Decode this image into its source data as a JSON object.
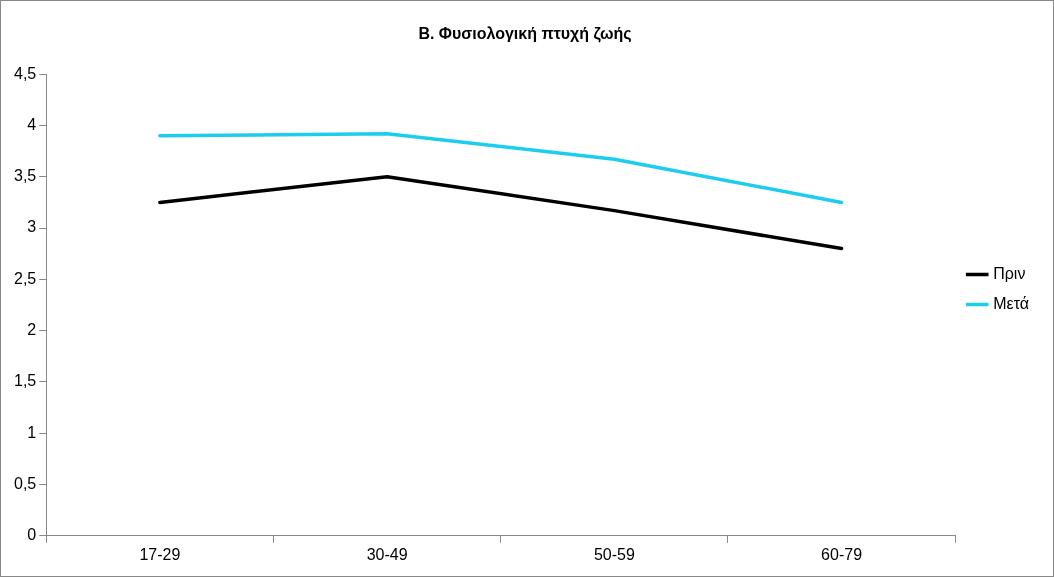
{
  "chart_data": {
    "type": "line",
    "title": "Β. Φυσιολογική πτυχή ζωής",
    "categories": [
      "17-29",
      "30-49",
      "50-59",
      "60-79"
    ],
    "series": [
      {
        "name": "Πριν",
        "color": "#000000",
        "values": [
          3.25,
          3.5,
          3.17,
          2.8
        ]
      },
      {
        "name": "Μετά",
        "color": "#1ccdf0",
        "values": [
          3.9,
          3.92,
          3.67,
          3.25
        ]
      }
    ],
    "ylim": [
      0,
      4.5
    ],
    "yticks": [
      0,
      {
        "value": 0.5,
        "label": "0,5"
      },
      1,
      {
        "value": 1.5,
        "label": "1,5"
      },
      2,
      {
        "value": 2.5,
        "label": "2,5"
      },
      3,
      {
        "value": 3.5,
        "label": "3,5"
      },
      4,
      {
        "value": 4.5,
        "label": "4,5"
      }
    ],
    "grid": false,
    "legend": "right",
    "marker": "none",
    "line_style": "solid"
  }
}
